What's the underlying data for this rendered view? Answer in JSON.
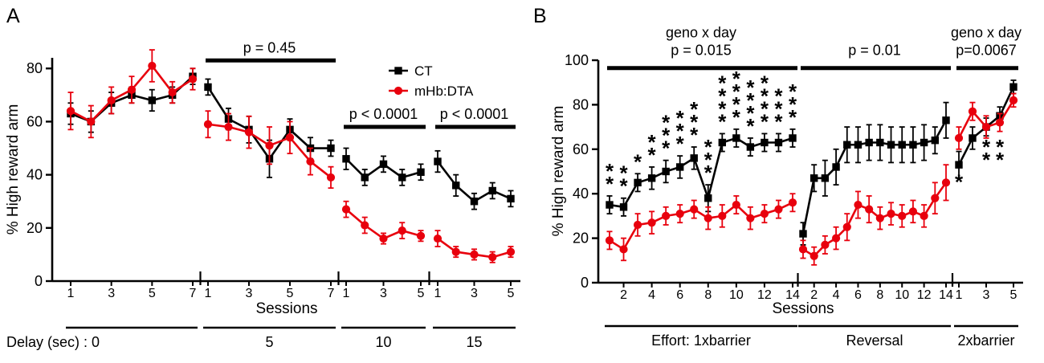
{
  "colors": {
    "ct": "#000000",
    "dta": "#e8000d",
    "text": "#000000",
    "background": "#ffffff"
  },
  "series_styles": [
    {
      "name": "CT",
      "color": "#000000",
      "marker": "square"
    },
    {
      "name": "mHb:DTA",
      "color": "#e8000d",
      "marker": "circle"
    }
  ],
  "chart_data": [
    {
      "type": "line",
      "label": "A",
      "ylabel": "% High reward arm",
      "xlabel": "Sessions",
      "ylim": [
        0,
        84
      ],
      "yticks": [
        0,
        20,
        40,
        60,
        80
      ],
      "legend": [
        "CT",
        "mHb:DTA"
      ],
      "segments": [
        {
          "caption": "Delay (sec) : 0",
          "tick_sessions": [
            1,
            3,
            5,
            7
          ],
          "series": [
            {
              "name": "CT",
              "values": [
                63,
                60,
                67,
                70,
                68,
                70,
                77
              ],
              "err": [
                4,
                4,
                4,
                3,
                4,
                3,
                3
              ]
            },
            {
              "name": "mHb:DTA",
              "values": [
                64,
                60,
                68,
                72,
                81,
                71,
                76
              ],
              "err": [
                7,
                6,
                5,
                5,
                6,
                4,
                4
              ]
            }
          ]
        },
        {
          "caption": "5",
          "tick_sessions": [
            1,
            3,
            5,
            7
          ],
          "sig": {
            "label": "p = 0.45",
            "bar_value": 83
          },
          "series": [
            {
              "name": "CT",
              "values": [
                73,
                61,
                57,
                46,
                57,
                50,
                50
              ],
              "err": [
                3,
                4,
                5,
                7,
                4,
                4,
                3
              ]
            },
            {
              "name": "mHb:DTA",
              "values": [
                59,
                58,
                56,
                51,
                54,
                45,
                39
              ],
              "err": [
                5,
                5,
                6,
                7,
                6,
                5,
                4
              ]
            }
          ]
        },
        {
          "caption": "10",
          "tick_sessions": [
            1,
            3,
            5
          ],
          "sig": {
            "label": "p < 0.0001",
            "bar_value": 58
          },
          "series": [
            {
              "name": "CT",
              "values": [
                46,
                39,
                44,
                39,
                41
              ],
              "err": [
                4,
                3,
                3,
                3,
                3
              ]
            },
            {
              "name": "mHb:DTA",
              "values": [
                27,
                21,
                16,
                19,
                17
              ],
              "err": [
                3,
                3,
                2,
                3,
                2
              ]
            }
          ]
        },
        {
          "caption": "15",
          "tick_sessions": [
            1,
            3,
            5
          ],
          "sig": {
            "label": "p < 0.0001",
            "bar_value": 58
          },
          "series": [
            {
              "name": "CT",
              "values": [
                45,
                36,
                30,
                34,
                31
              ],
              "err": [
                4,
                4,
                3,
                3,
                3
              ]
            },
            {
              "name": "mHb:DTA",
              "values": [
                16,
                11,
                10,
                9,
                11
              ],
              "err": [
                3,
                2,
                2,
                2,
                2
              ]
            }
          ]
        }
      ]
    },
    {
      "type": "line",
      "label": "B",
      "ylabel": "% High reward arm",
      "xlabel": "Sessions",
      "ylim": [
        0,
        100
      ],
      "yticks": [
        0,
        20,
        40,
        60,
        80,
        100
      ],
      "segments": [
        {
          "caption": "Effort: 1xbarrier",
          "tick_sessions": [
            2,
            4,
            6,
            8,
            10,
            12,
            14
          ],
          "sig": {
            "lines": [
              "geno x day",
              "p = 0.015"
            ],
            "bar_value": 96.5
          },
          "stars_above_ct": [
            2,
            2,
            1,
            2,
            3,
            3,
            3,
            3,
            4,
            4,
            4,
            4,
            3,
            3
          ],
          "series": [
            {
              "name": "CT",
              "values": [
                35,
                34,
                45,
                47,
                50,
                52,
                56,
                38,
                63,
                65,
                61,
                63,
                63,
                65
              ],
              "err": [
                4,
                4,
                4,
                5,
                5,
                5,
                5,
                6,
                4,
                4,
                4,
                4,
                4,
                4
              ]
            },
            {
              "name": "mHb:DTA",
              "values": [
                19,
                15,
                26,
                27,
                30,
                31,
                33,
                29,
                30,
                35,
                29,
                31,
                33,
                36
              ],
              "err": [
                4,
                5,
                5,
                5,
                4,
                4,
                4,
                5,
                5,
                4,
                5,
                4,
                4,
                4
              ]
            }
          ]
        },
        {
          "caption": "Reversal",
          "tick_sessions": [
            2,
            4,
            6,
            8,
            10,
            12,
            14
          ],
          "sig": {
            "lines": [
              "p = 0.01"
            ],
            "bar_value": 96.5
          },
          "series": [
            {
              "name": "CT",
              "values": [
                22,
                47,
                47,
                52,
                62,
                62,
                63,
                63,
                62,
                62,
                62,
                63,
                64,
                73
              ],
              "err": [
                5,
                6,
                8,
                8,
                8,
                8,
                8,
                8,
                8,
                8,
                8,
                8,
                6,
                8
              ]
            },
            {
              "name": "mHb:DTA",
              "values": [
                15,
                12,
                17,
                20,
                25,
                35,
                33,
                29,
                31,
                30,
                32,
                30,
                38,
                45
              ],
              "err": [
                4,
                4,
                4,
                5,
                6,
                6,
                6,
                5,
                5,
                5,
                5,
                5,
                7,
                8
              ]
            }
          ]
        },
        {
          "caption": "2xbarrier",
          "tick_sessions": [
            1,
            3,
            5
          ],
          "sig": {
            "lines": [
              "geno x day",
              "p=0.0067"
            ],
            "bar_value": 96.5
          },
          "stars_at": [
            {
              "session": 1,
              "stars": 1,
              "value": 42
            },
            {
              "session": 3,
              "stars": 2,
              "value": 52
            },
            {
              "session": 4,
              "stars": 2,
              "value": 52
            }
          ],
          "series": [
            {
              "name": "CT",
              "values": [
                53,
                65,
                70,
                75,
                88
              ],
              "err": [
                6,
                5,
                4,
                4,
                3
              ]
            },
            {
              "name": "mHb:DTA",
              "values": [
                65,
                77,
                70,
                72,
                82
              ],
              "err": [
                5,
                4,
                5,
                4,
                3
              ]
            }
          ]
        }
      ]
    }
  ]
}
